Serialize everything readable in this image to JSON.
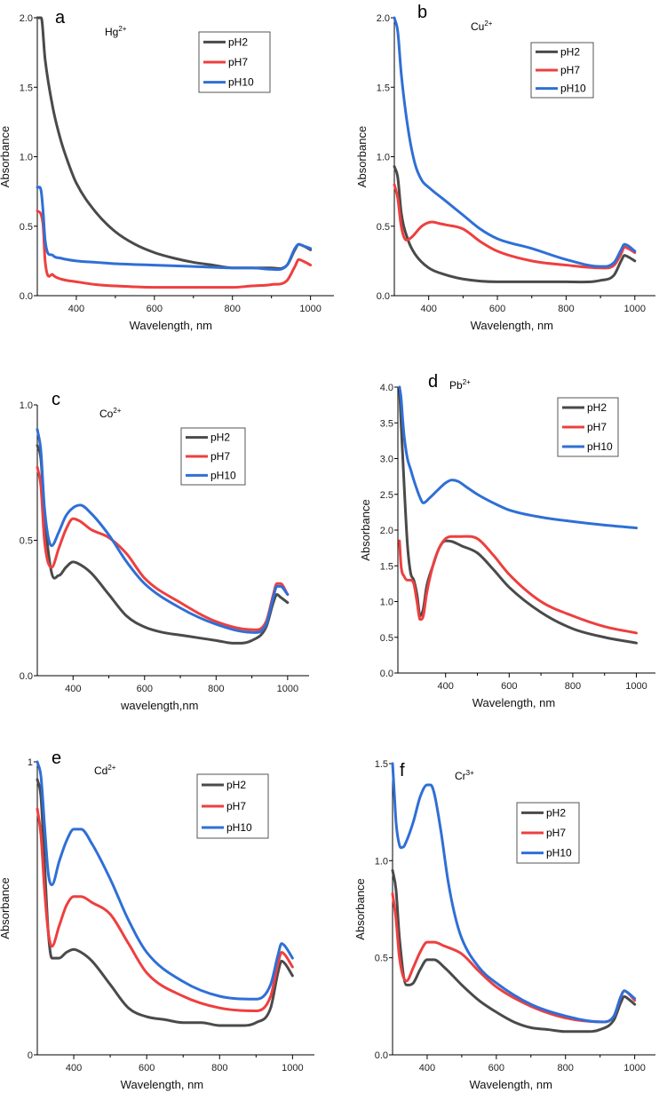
{
  "chart_data": [
    {
      "type": "line",
      "letter": "a",
      "ion": "Hg",
      "ion_charge": "2+",
      "xlabel": "Wavelength, nm",
      "ylabel": "Absorbance",
      "xlim": [
        300,
        1060
      ],
      "ylim": [
        0,
        2.0
      ],
      "xticks": [
        "400",
        "600",
        "800",
        "1000"
      ],
      "xtick_values": [
        400,
        600,
        800,
        1000
      ],
      "yticks": [
        "0.0",
        "0.5",
        "1.0",
        "1.5",
        "2.0"
      ],
      "ytick_values": [
        0,
        0.5,
        1.0,
        1.5,
        2.0
      ],
      "legend": [
        "pH2",
        "pH7",
        "pH10"
      ],
      "series": [
        {
          "name": "pH2",
          "x": [
            300,
            310,
            320,
            340,
            360,
            380,
            400,
            450,
            500,
            550,
            600,
            650,
            700,
            750,
            800,
            850,
            900,
            940,
            960,
            970,
            980,
            1000
          ],
          "y": [
            2.0,
            2.0,
            1.7,
            1.35,
            1.12,
            0.95,
            0.81,
            0.6,
            0.46,
            0.37,
            0.31,
            0.27,
            0.24,
            0.22,
            0.2,
            0.2,
            0.2,
            0.22,
            0.33,
            0.37,
            0.36,
            0.33
          ]
        },
        {
          "name": "pH7",
          "x": [
            300,
            310,
            315,
            320,
            340,
            360,
            400,
            450,
            500,
            600,
            700,
            800,
            850,
            900,
            940,
            960,
            970,
            980,
            1000
          ],
          "y": [
            0.61,
            0.58,
            0.5,
            0.25,
            0.15,
            0.12,
            0.1,
            0.08,
            0.07,
            0.06,
            0.06,
            0.06,
            0.07,
            0.08,
            0.11,
            0.21,
            0.26,
            0.25,
            0.22
          ]
        },
        {
          "name": "pH10",
          "x": [
            300,
            310,
            315,
            320,
            340,
            360,
            400,
            450,
            500,
            600,
            700,
            800,
            850,
            900,
            940,
            960,
            970,
            980,
            1000
          ],
          "y": [
            0.78,
            0.75,
            0.6,
            0.4,
            0.29,
            0.27,
            0.25,
            0.24,
            0.23,
            0.22,
            0.21,
            0.2,
            0.2,
            0.19,
            0.22,
            0.34,
            0.37,
            0.36,
            0.34
          ]
        }
      ]
    },
    {
      "type": "line",
      "letter": "b",
      "ion": "Cu",
      "ion_charge": "2+",
      "xlabel": "Wavelength, nm",
      "ylabel": "Absorbance",
      "xlim": [
        300,
        1060
      ],
      "ylim": [
        0,
        2.0
      ],
      "xticks": [
        "400",
        "600",
        "800",
        "1000"
      ],
      "xtick_values": [
        400,
        600,
        800,
        1000
      ],
      "yticks": [
        "0.0",
        "0.5",
        "1.0",
        "1.5",
        "2.0"
      ],
      "ytick_values": [
        0,
        0.5,
        1.0,
        1.5,
        2.0
      ],
      "legend": [
        "pH2",
        "pH7",
        "pH10"
      ],
      "series": [
        {
          "name": "pH2",
          "x": [
            300,
            310,
            320,
            340,
            360,
            400,
            450,
            500,
            600,
            700,
            800,
            900,
            940,
            960,
            970,
            980,
            1000
          ],
          "y": [
            0.93,
            0.85,
            0.6,
            0.4,
            0.3,
            0.2,
            0.15,
            0.12,
            0.1,
            0.1,
            0.1,
            0.11,
            0.15,
            0.25,
            0.29,
            0.28,
            0.25
          ]
        },
        {
          "name": "pH7",
          "x": [
            300,
            310,
            320,
            335,
            350,
            380,
            410,
            430,
            450,
            500,
            550,
            600,
            700,
            800,
            900,
            940,
            960,
            970,
            980,
            1000
          ],
          "y": [
            0.8,
            0.7,
            0.5,
            0.4,
            0.42,
            0.5,
            0.53,
            0.52,
            0.51,
            0.48,
            0.39,
            0.32,
            0.25,
            0.22,
            0.2,
            0.22,
            0.3,
            0.35,
            0.34,
            0.31
          ]
        },
        {
          "name": "pH10",
          "x": [
            300,
            310,
            320,
            340,
            360,
            380,
            400,
            450,
            500,
            550,
            600,
            700,
            800,
            900,
            940,
            960,
            970,
            980,
            1000
          ],
          "y": [
            2.0,
            1.9,
            1.6,
            1.2,
            0.95,
            0.83,
            0.78,
            0.68,
            0.58,
            0.48,
            0.41,
            0.34,
            0.26,
            0.21,
            0.24,
            0.33,
            0.37,
            0.36,
            0.32
          ]
        }
      ]
    },
    {
      "type": "line",
      "letter": "c",
      "ion": "Co",
      "ion_charge": "2+",
      "xlabel": "wavelength,nm",
      "ylabel": "",
      "xlim": [
        300,
        1060
      ],
      "ylim": [
        0,
        1.0
      ],
      "xticks": [
        "400",
        "600",
        "800",
        "1000"
      ],
      "xtick_values": [
        400,
        600,
        800,
        1000
      ],
      "yticks": [
        "0.0",
        "0.5",
        "1.0"
      ],
      "ytick_values": [
        0,
        0.5,
        1.0
      ],
      "legend": [
        "pH2",
        "pH7",
        "pH10"
      ],
      "series": [
        {
          "name": "pH2",
          "x": [
            300,
            310,
            320,
            340,
            360,
            380,
            400,
            420,
            450,
            500,
            550,
            600,
            650,
            700,
            750,
            800,
            850,
            900,
            940,
            960,
            970,
            980,
            1000
          ],
          "y": [
            0.85,
            0.8,
            0.6,
            0.38,
            0.37,
            0.4,
            0.42,
            0.41,
            0.38,
            0.3,
            0.22,
            0.18,
            0.16,
            0.15,
            0.14,
            0.13,
            0.12,
            0.13,
            0.18,
            0.27,
            0.3,
            0.29,
            0.27
          ]
        },
        {
          "name": "pH7",
          "x": [
            300,
            310,
            320,
            340,
            360,
            380,
            400,
            420,
            450,
            500,
            550,
            600,
            700,
            800,
            900,
            940,
            960,
            970,
            980,
            1000
          ],
          "y": [
            0.77,
            0.7,
            0.5,
            0.4,
            0.47,
            0.54,
            0.58,
            0.57,
            0.54,
            0.51,
            0.45,
            0.36,
            0.27,
            0.2,
            0.17,
            0.2,
            0.3,
            0.34,
            0.34,
            0.3
          ]
        },
        {
          "name": "pH10",
          "x": [
            300,
            310,
            320,
            340,
            360,
            380,
            400,
            420,
            450,
            500,
            550,
            600,
            700,
            800,
            900,
            940,
            960,
            970,
            980,
            1000
          ],
          "y": [
            0.91,
            0.83,
            0.62,
            0.48,
            0.53,
            0.59,
            0.62,
            0.63,
            0.6,
            0.52,
            0.42,
            0.34,
            0.25,
            0.19,
            0.16,
            0.19,
            0.29,
            0.33,
            0.33,
            0.3
          ]
        }
      ]
    },
    {
      "type": "line",
      "letter": "d",
      "ion": "Pb",
      "ion_charge": "2+",
      "xlabel": "Wavelength, nm",
      "ylabel": "Absorbance",
      "xlim": [
        250,
        1060
      ],
      "ylim": [
        0,
        4.0
      ],
      "xticks": [
        "400",
        "600",
        "800",
        "1000"
      ],
      "xtick_values": [
        400,
        600,
        800,
        1000
      ],
      "yticks": [
        "0.0",
        "0.5",
        "1.0",
        "1.5",
        "2.0",
        "2.5",
        "3.0",
        "3.5",
        "4.0"
      ],
      "ytick_values": [
        0,
        0.5,
        1.0,
        1.5,
        2.0,
        2.5,
        3.0,
        3.5,
        4.0
      ],
      "legend": [
        "pH2",
        "pH7",
        "pH10"
      ],
      "series": [
        {
          "name": "pH2",
          "x": [
            255,
            260,
            270,
            280,
            290,
            300,
            310,
            320,
            330,
            340,
            360,
            380,
            400,
            420,
            450,
            500,
            550,
            600,
            700,
            800,
            900,
            1000
          ],
          "y": [
            4.0,
            3.5,
            2.6,
            1.8,
            1.4,
            1.3,
            1.1,
            0.8,
            0.9,
            1.2,
            1.5,
            1.75,
            1.85,
            1.84,
            1.78,
            1.68,
            1.45,
            1.2,
            0.85,
            0.62,
            0.5,
            0.42
          ]
        },
        {
          "name": "pH7",
          "x": [
            255,
            260,
            270,
            280,
            290,
            300,
            310,
            320,
            330,
            340,
            360,
            380,
            400,
            420,
            450,
            500,
            550,
            600,
            700,
            800,
            900,
            1000
          ],
          "y": [
            1.85,
            1.5,
            1.35,
            1.3,
            1.3,
            1.25,
            1.0,
            0.75,
            0.8,
            1.1,
            1.5,
            1.75,
            1.88,
            1.91,
            1.91,
            1.88,
            1.65,
            1.38,
            1.0,
            0.8,
            0.65,
            0.56
          ]
        },
        {
          "name": "pH10",
          "x": [
            255,
            260,
            265,
            270,
            280,
            290,
            300,
            320,
            330,
            350,
            380,
            400,
            420,
            440,
            460,
            500,
            550,
            600,
            700,
            800,
            900,
            1000
          ],
          "y": [
            4.0,
            3.85,
            3.55,
            3.3,
            3.0,
            2.85,
            2.7,
            2.45,
            2.38,
            2.45,
            2.58,
            2.66,
            2.7,
            2.68,
            2.62,
            2.5,
            2.38,
            2.28,
            2.18,
            2.12,
            2.07,
            2.03
          ]
        }
      ]
    },
    {
      "type": "line",
      "letter": "e",
      "ion": "Cd",
      "ion_charge": "2+",
      "xlabel": "Wavelength, nm",
      "ylabel": "Absorbance",
      "xlim": [
        300,
        1060
      ],
      "ylim": [
        0,
        1.0
      ],
      "xticks": [
        "400",
        "600",
        "800",
        "1000"
      ],
      "xtick_values": [
        400,
        600,
        800,
        1000
      ],
      "yticks": [
        "0",
        "1"
      ],
      "ytick_values": [
        0,
        1.0
      ],
      "legend": [
        "pH2",
        "pH7",
        "pH10"
      ],
      "series": [
        {
          "name": "pH2",
          "x": [
            300,
            310,
            320,
            330,
            340,
            360,
            380,
            400,
            420,
            450,
            500,
            550,
            600,
            650,
            700,
            750,
            800,
            850,
            900,
            940,
            960,
            970,
            980,
            1000
          ],
          "y": [
            0.94,
            0.88,
            0.65,
            0.42,
            0.33,
            0.33,
            0.35,
            0.36,
            0.35,
            0.32,
            0.24,
            0.16,
            0.13,
            0.12,
            0.11,
            0.11,
            0.1,
            0.1,
            0.11,
            0.16,
            0.28,
            0.32,
            0.31,
            0.27
          ]
        },
        {
          "name": "pH7",
          "x": [
            300,
            310,
            320,
            330,
            340,
            360,
            380,
            400,
            420,
            450,
            500,
            550,
            600,
            700,
            800,
            900,
            940,
            960,
            970,
            980,
            1000
          ],
          "y": [
            0.84,
            0.75,
            0.56,
            0.42,
            0.37,
            0.44,
            0.51,
            0.54,
            0.54,
            0.52,
            0.48,
            0.38,
            0.28,
            0.2,
            0.16,
            0.15,
            0.2,
            0.31,
            0.35,
            0.34,
            0.3
          ]
        },
        {
          "name": "pH10",
          "x": [
            300,
            310,
            320,
            330,
            340,
            360,
            380,
            400,
            420,
            450,
            500,
            550,
            600,
            700,
            800,
            900,
            940,
            960,
            970,
            980,
            1000
          ],
          "y": [
            1.0,
            0.95,
            0.78,
            0.62,
            0.58,
            0.66,
            0.73,
            0.77,
            0.77,
            0.72,
            0.6,
            0.46,
            0.35,
            0.25,
            0.2,
            0.19,
            0.24,
            0.34,
            0.38,
            0.37,
            0.33
          ]
        }
      ]
    },
    {
      "type": "line",
      "letter": "f",
      "ion": "Cr",
      "ion_charge": "3+",
      "xlabel": "Wavelength, nm",
      "ylabel": "Absorbance",
      "xlim": [
        300,
        1060
      ],
      "ylim": [
        0,
        1.5
      ],
      "xticks": [
        "400",
        "600",
        "800",
        "1000"
      ],
      "xtick_values": [
        400,
        600,
        800,
        1000
      ],
      "yticks": [
        "0.0",
        "0.5",
        "1.0",
        "1.5"
      ],
      "ytick_values": [
        0,
        0.5,
        1.0,
        1.5
      ],
      "legend": [
        "pH2",
        "pH7",
        "pH10"
      ],
      "series": [
        {
          "name": "pH2",
          "x": [
            300,
            310,
            320,
            340,
            360,
            380,
            400,
            420,
            450,
            500,
            550,
            600,
            650,
            700,
            750,
            800,
            850,
            900,
            940,
            960,
            970,
            980,
            1000
          ],
          "y": [
            0.95,
            0.85,
            0.6,
            0.36,
            0.37,
            0.44,
            0.49,
            0.49,
            0.45,
            0.36,
            0.28,
            0.22,
            0.17,
            0.14,
            0.13,
            0.12,
            0.12,
            0.13,
            0.18,
            0.27,
            0.3,
            0.29,
            0.26
          ]
        },
        {
          "name": "pH7",
          "x": [
            300,
            310,
            320,
            340,
            360,
            380,
            400,
            420,
            450,
            500,
            550,
            600,
            700,
            800,
            900,
            940,
            960,
            970,
            980,
            1000
          ],
          "y": [
            0.83,
            0.7,
            0.5,
            0.38,
            0.45,
            0.53,
            0.58,
            0.58,
            0.56,
            0.52,
            0.43,
            0.35,
            0.25,
            0.19,
            0.17,
            0.2,
            0.3,
            0.33,
            0.32,
            0.28
          ]
        },
        {
          "name": "pH10",
          "x": [
            300,
            305,
            310,
            320,
            330,
            340,
            360,
            380,
            400,
            410,
            420,
            440,
            460,
            480,
            500,
            550,
            600,
            700,
            800,
            900,
            940,
            960,
            970,
            980,
            1000
          ],
          "y": [
            1.5,
            1.35,
            1.2,
            1.08,
            1.07,
            1.1,
            1.2,
            1.33,
            1.39,
            1.39,
            1.35,
            1.15,
            0.9,
            0.72,
            0.6,
            0.45,
            0.37,
            0.26,
            0.2,
            0.17,
            0.2,
            0.3,
            0.33,
            0.32,
            0.29
          ]
        }
      ]
    }
  ],
  "colors": {
    "pH2": "#4a4a4a",
    "pH7": "#ee3f3f",
    "pH10": "#2f6fd6"
  }
}
